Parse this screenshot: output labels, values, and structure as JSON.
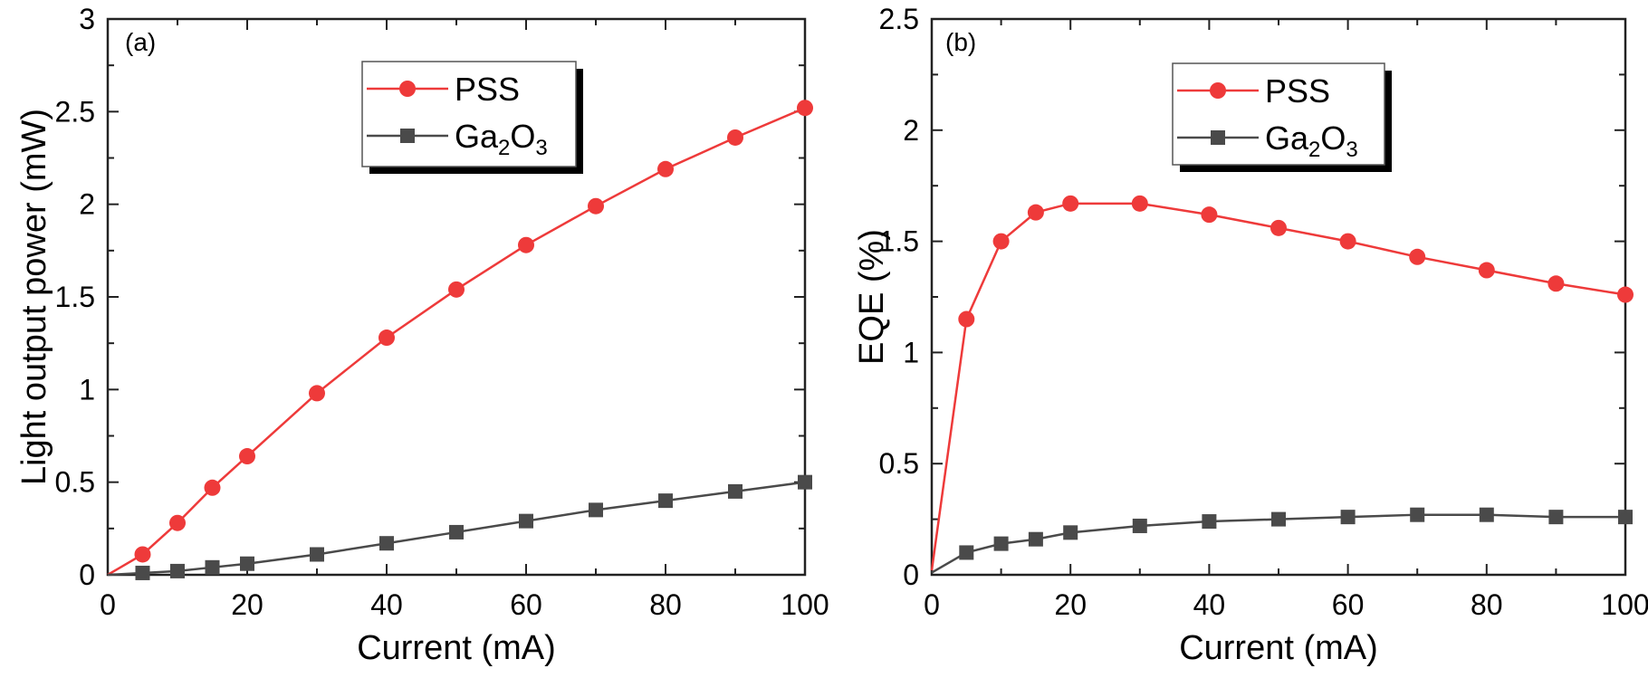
{
  "chart_data": [
    {
      "type": "line",
      "panel_label": "(a)",
      "xlabel": "Current (mA)",
      "ylabel": "Light output power (mW)",
      "xlim": [
        0,
        100
      ],
      "ylim": [
        0,
        3
      ],
      "xticks": [
        "0",
        "20",
        "40",
        "60",
        "80",
        "100"
      ],
      "yticks": [
        "0",
        "0.5",
        "1",
        "1.5",
        "2",
        "2.5",
        "3"
      ],
      "grid": false,
      "legend": "top-center",
      "x": [
        0,
        5,
        10,
        15,
        20,
        30,
        40,
        50,
        60,
        70,
        80,
        90,
        100
      ],
      "series": [
        {
          "name": "PSS",
          "marker": "circle",
          "color": "#ee3a3a",
          "values": [
            0,
            0.11,
            0.28,
            0.47,
            0.64,
            0.98,
            1.28,
            1.54,
            1.78,
            1.99,
            2.19,
            2.36,
            2.52
          ]
        },
        {
          "name": "Ga2O3",
          "name_main": "Ga",
          "name_sub1": "2",
          "name_mid": "O",
          "name_sub2": "3",
          "marker": "square",
          "color": "#4a4a4a",
          "values": [
            0,
            0.01,
            0.02,
            0.04,
            0.06,
            0.11,
            0.17,
            0.23,
            0.29,
            0.35,
            0.4,
            0.45,
            0.5
          ]
        }
      ]
    },
    {
      "type": "line",
      "panel_label": "(b)",
      "xlabel": "Current (mA)",
      "ylabel": "EQE (%)",
      "xlim": [
        0,
        100
      ],
      "ylim": [
        0,
        2.5
      ],
      "xticks": [
        "0",
        "20",
        "40",
        "60",
        "80",
        "100"
      ],
      "yticks": [
        "0",
        "0.5",
        "1",
        "1.5",
        "2",
        "2.5"
      ],
      "grid": false,
      "legend": "top-center",
      "x": [
        0,
        5,
        10,
        15,
        20,
        30,
        40,
        50,
        60,
        70,
        80,
        90,
        100
      ],
      "series": [
        {
          "name": "PSS",
          "marker": "circle",
          "color": "#ee3a3a",
          "values": [
            0.02,
            1.15,
            1.5,
            1.63,
            1.67,
            1.67,
            1.62,
            1.56,
            1.5,
            1.43,
            1.37,
            1.31,
            1.26
          ]
        },
        {
          "name": "Ga2O3",
          "name_main": "Ga",
          "name_sub1": "2",
          "name_mid": "O",
          "name_sub2": "3",
          "marker": "square",
          "color": "#4a4a4a",
          "values": [
            0.01,
            0.1,
            0.14,
            0.16,
            0.19,
            0.22,
            0.24,
            0.25,
            0.26,
            0.27,
            0.27,
            0.26,
            0.26
          ]
        }
      ]
    }
  ]
}
